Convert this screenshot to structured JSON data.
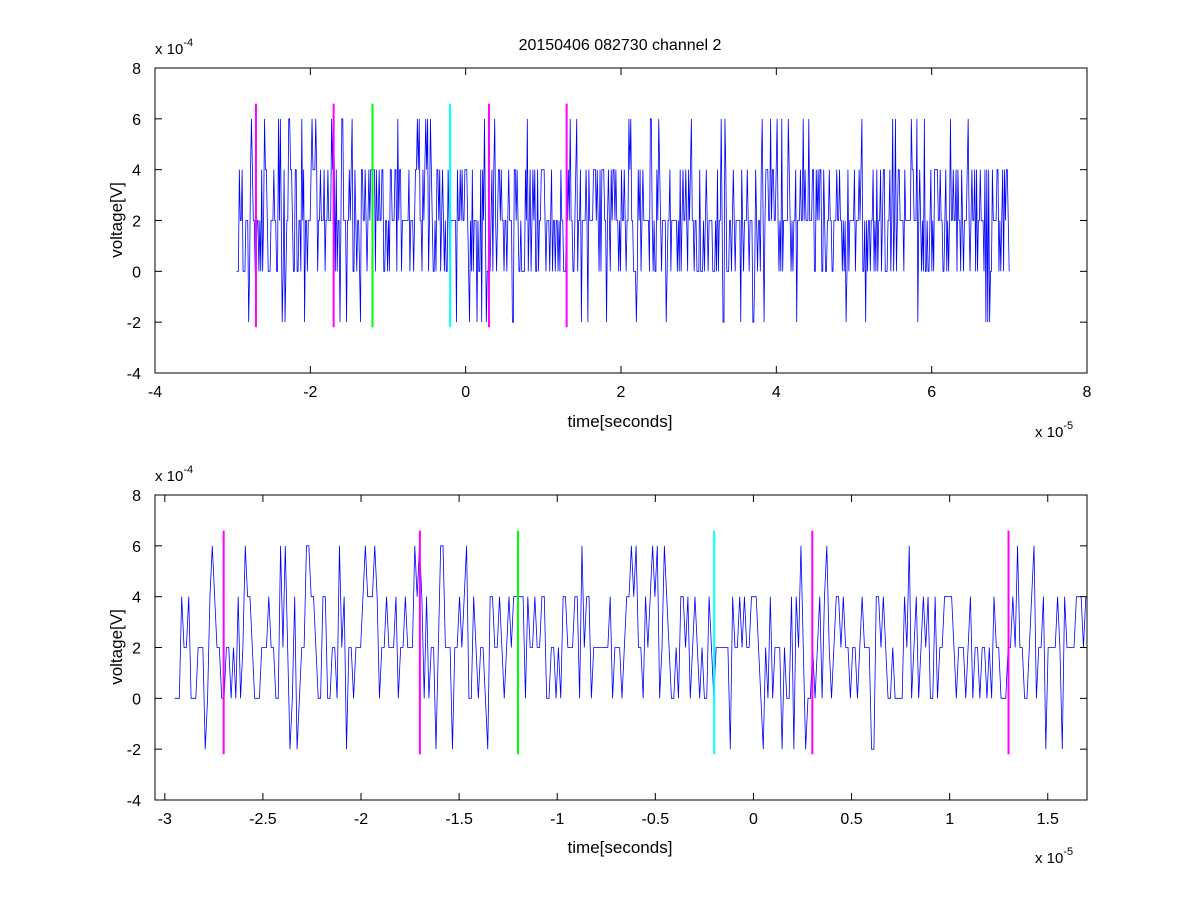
{
  "figure_title": "20150406 082730 channel 2",
  "colors": {
    "signal": "#0000ff",
    "marker_magenta": "#ff00ff",
    "marker_green": "#00ff00",
    "marker_cyan": "#00ffff",
    "axes": "#000000"
  },
  "chart_data": [
    {
      "type": "line",
      "xlabel": "time[seconds]",
      "ylabel": "voltage[V]",
      "x_exponent_label": "x 10",
      "x_exponent_power": "-5",
      "y_exponent_label": "x 10",
      "y_exponent_power": "-4",
      "xlim": [
        -4,
        8
      ],
      "ylim": [
        -4,
        8
      ],
      "x_ticks": [
        -4,
        -2,
        0,
        2,
        4,
        6,
        8
      ],
      "y_ticks": [
        -4,
        -2,
        0,
        2,
        4,
        6,
        8
      ],
      "x_tick_labels": [
        "-4",
        "-2",
        "0",
        "2",
        "4",
        "6",
        "8"
      ],
      "y_tick_labels": [
        "-4",
        "-2",
        "0",
        "2",
        "4",
        "6",
        "8"
      ],
      "grid": false,
      "signal": {
        "x_start": -2.95,
        "x_end": 7.0,
        "levels": [
          -2,
          0,
          2,
          4,
          6
        ],
        "baseline": 2,
        "noise_note": "quantized noise around 2e-4 V"
      },
      "markers": [
        {
          "x": -2.7,
          "color": "magenta",
          "y_range": [
            -2.2,
            6.6
          ]
        },
        {
          "x": -1.7,
          "color": "magenta",
          "y_range": [
            -2.2,
            6.6
          ]
        },
        {
          "x": -1.2,
          "color": "green",
          "y_range": [
            -2.2,
            6.6
          ]
        },
        {
          "x": -0.2,
          "color": "cyan",
          "y_range": [
            -2.2,
            6.6
          ]
        },
        {
          "x": 0.3,
          "color": "magenta",
          "y_range": [
            -2.2,
            6.6
          ]
        },
        {
          "x": 1.3,
          "color": "magenta",
          "y_range": [
            -2.2,
            6.6
          ]
        }
      ]
    },
    {
      "type": "line",
      "xlabel": "time[seconds]",
      "ylabel": "voltage[V]",
      "x_exponent_label": "x 10",
      "x_exponent_power": "-5",
      "y_exponent_label": "x 10",
      "y_exponent_power": "-4",
      "xlim": [
        -3.05,
        1.7
      ],
      "ylim": [
        -4,
        8
      ],
      "x_ticks": [
        -3,
        -2.5,
        -2,
        -1.5,
        -1,
        -0.5,
        0,
        0.5,
        1,
        1.5
      ],
      "y_ticks": [
        -4,
        -2,
        0,
        2,
        4,
        6,
        8
      ],
      "x_tick_labels": [
        "-3",
        "-2.5",
        "-2",
        "-1.5",
        "-1",
        "-0.5",
        "0",
        "0.5",
        "1",
        "1.5"
      ],
      "y_tick_labels": [
        "-4",
        "-2",
        "0",
        "2",
        "4",
        "6",
        "8"
      ],
      "grid": false,
      "signal": {
        "x_start": -2.95,
        "x_end": 1.7,
        "levels": [
          -2,
          0,
          2,
          4,
          6
        ],
        "baseline": 2
      },
      "markers": [
        {
          "x": -2.7,
          "color": "magenta",
          "y_range": [
            -2.2,
            6.6
          ]
        },
        {
          "x": -1.7,
          "color": "magenta",
          "y_range": [
            -2.2,
            6.6
          ]
        },
        {
          "x": -1.2,
          "color": "green",
          "y_range": [
            -2.2,
            6.6
          ]
        },
        {
          "x": -0.2,
          "color": "cyan",
          "y_range": [
            -2.2,
            6.6
          ]
        },
        {
          "x": 0.3,
          "color": "magenta",
          "y_range": [
            -2.2,
            6.6
          ]
        },
        {
          "x": 1.3,
          "color": "magenta",
          "y_range": [
            -2.2,
            6.6
          ]
        }
      ]
    }
  ]
}
